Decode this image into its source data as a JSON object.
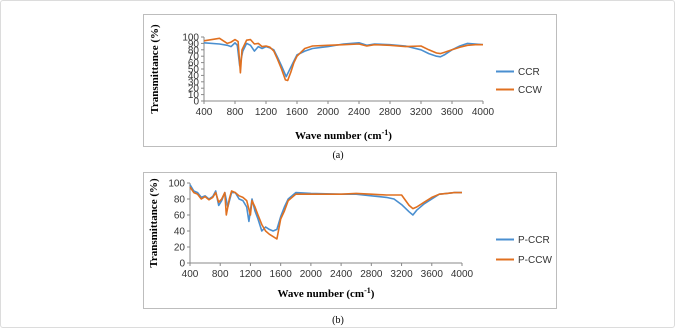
{
  "charts": [
    {
      "id": "a",
      "caption": "(a)",
      "chart_data": {
        "type": "line",
        "xlabel_main": "Wave number (cm",
        "xlabel_sup": "-1",
        "xlabel_end": ")",
        "ylabel": "Transmittance (%)",
        "xlim": [
          400,
          4000
        ],
        "ylim": [
          0,
          100
        ],
        "xticks": [
          400,
          800,
          1200,
          1600,
          2000,
          2400,
          2800,
          3200,
          3600,
          4000
        ],
        "yticks": [
          0,
          10,
          20,
          30,
          40,
          50,
          60,
          70,
          80,
          90,
          100
        ],
        "grid": false,
        "legend_placement": "right",
        "series": [
          {
            "name": "CCR",
            "color": "#4a8fd0",
            "points": [
              [
                400,
                91
              ],
              [
                600,
                89
              ],
              [
                700,
                87
              ],
              [
                750,
                85
              ],
              [
                800,
                91
              ],
              [
                830,
                87
              ],
              [
                860,
                55
              ],
              [
                900,
                78
              ],
              [
                950,
                90
              ],
              [
                1000,
                87
              ],
              [
                1050,
                78
              ],
              [
                1100,
                85
              ],
              [
                1150,
                82
              ],
              [
                1200,
                85
              ],
              [
                1250,
                83
              ],
              [
                1300,
                80
              ],
              [
                1350,
                68
              ],
              [
                1400,
                55
              ],
              [
                1460,
                38
              ],
              [
                1500,
                48
              ],
              [
                1550,
                60
              ],
              [
                1600,
                72
              ],
              [
                1700,
                78
              ],
              [
                1800,
                82
              ],
              [
                2000,
                85
              ],
              [
                2200,
                89
              ],
              [
                2400,
                91
              ],
              [
                2500,
                87
              ],
              [
                2600,
                89
              ],
              [
                2800,
                88
              ],
              [
                3000,
                86
              ],
              [
                3200,
                80
              ],
              [
                3300,
                74
              ],
              [
                3400,
                70
              ],
              [
                3450,
                69
              ],
              [
                3500,
                72
              ],
              [
                3600,
                80
              ],
              [
                3700,
                86
              ],
              [
                3800,
                90
              ],
              [
                3900,
                89
              ],
              [
                4000,
                88
              ]
            ]
          },
          {
            "name": "CCW",
            "color": "#e07020",
            "points": [
              [
                400,
                94
              ],
              [
                500,
                96
              ],
              [
                600,
                98
              ],
              [
                700,
                90
              ],
              [
                750,
                92
              ],
              [
                800,
                96
              ],
              [
                840,
                93
              ],
              [
                870,
                44
              ],
              [
                890,
                80
              ],
              [
                950,
                95
              ],
              [
                1000,
                96
              ],
              [
                1050,
                89
              ],
              [
                1100,
                90
              ],
              [
                1150,
                85
              ],
              [
                1200,
                86
              ],
              [
                1250,
                84
              ],
              [
                1300,
                78
              ],
              [
                1350,
                65
              ],
              [
                1400,
                50
              ],
              [
                1450,
                33
              ],
              [
                1480,
                32
              ],
              [
                1520,
                45
              ],
              [
                1560,
                60
              ],
              [
                1600,
                70
              ],
              [
                1700,
                82
              ],
              [
                1800,
                86
              ],
              [
                2000,
                87
              ],
              [
                2200,
                88
              ],
              [
                2400,
                89
              ],
              [
                2500,
                86
              ],
              [
                2600,
                88
              ],
              [
                2800,
                87
              ],
              [
                3000,
                85
              ],
              [
                3200,
                86
              ],
              [
                3300,
                80
              ],
              [
                3400,
                75
              ],
              [
                3450,
                74
              ],
              [
                3500,
                76
              ],
              [
                3600,
                80
              ],
              [
                3700,
                84
              ],
              [
                3800,
                87
              ],
              [
                3900,
                88
              ],
              [
                4000,
                88
              ]
            ]
          }
        ]
      }
    },
    {
      "id": "b",
      "caption": "(b)",
      "chart_data": {
        "type": "line",
        "xlabel_main": "Wave number (cm",
        "xlabel_sup": "-1",
        "xlabel_end": ")",
        "ylabel": "Transmittance (%)",
        "xlim": [
          400,
          4000
        ],
        "ylim": [
          0,
          100
        ],
        "xticks": [
          400,
          800,
          1200,
          1600,
          2000,
          2400,
          2800,
          3200,
          3600,
          4000
        ],
        "yticks": [
          0,
          20,
          40,
          60,
          80,
          100
        ],
        "grid": false,
        "legend_placement": "right",
        "series": [
          {
            "name": "P-CCR",
            "color": "#4a8fd0",
            "points": [
              [
                400,
                98
              ],
              [
                450,
                90
              ],
              [
                500,
                88
              ],
              [
                550,
                82
              ],
              [
                600,
                84
              ],
              [
                650,
                80
              ],
              [
                700,
                83
              ],
              [
                740,
                90
              ],
              [
                780,
                72
              ],
              [
                820,
                78
              ],
              [
                860,
                88
              ],
              [
                900,
                70
              ],
              [
                950,
                88
              ],
              [
                1000,
                88
              ],
              [
                1050,
                80
              ],
              [
                1100,
                78
              ],
              [
                1150,
                70
              ],
              [
                1180,
                52
              ],
              [
                1220,
                80
              ],
              [
                1260,
                65
              ],
              [
                1300,
                55
              ],
              [
                1350,
                40
              ],
              [
                1400,
                45
              ],
              [
                1450,
                42
              ],
              [
                1500,
                40
              ],
              [
                1550,
                42
              ],
              [
                1600,
                58
              ],
              [
                1650,
                70
              ],
              [
                1700,
                80
              ],
              [
                1800,
                88
              ],
              [
                2000,
                87
              ],
              [
                2400,
                86
              ],
              [
                2600,
                86
              ],
              [
                2800,
                84
              ],
              [
                3000,
                82
              ],
              [
                3100,
                80
              ],
              [
                3200,
                73
              ],
              [
                3300,
                64
              ],
              [
                3350,
                60
              ],
              [
                3400,
                66
              ],
              [
                3500,
                74
              ],
              [
                3600,
                80
              ],
              [
                3700,
                86
              ],
              [
                3800,
                87
              ],
              [
                3900,
                88
              ],
              [
                4000,
                88
              ]
            ]
          },
          {
            "name": "P-CCW",
            "color": "#e07020",
            "points": [
              [
                400,
                95
              ],
              [
                450,
                88
              ],
              [
                500,
                86
              ],
              [
                550,
                80
              ],
              [
                600,
                83
              ],
              [
                650,
                79
              ],
              [
                700,
                82
              ],
              [
                740,
                88
              ],
              [
                780,
                76
              ],
              [
                820,
                80
              ],
              [
                860,
                88
              ],
              [
                880,
                60
              ],
              [
                920,
                80
              ],
              [
                950,
                90
              ],
              [
                1000,
                88
              ],
              [
                1050,
                84
              ],
              [
                1100,
                82
              ],
              [
                1150,
                78
              ],
              [
                1200,
                60
              ],
              [
                1220,
                78
              ],
              [
                1260,
                70
              ],
              [
                1300,
                60
              ],
              [
                1350,
                48
              ],
              [
                1400,
                40
              ],
              [
                1450,
                36
              ],
              [
                1500,
                33
              ],
              [
                1550,
                30
              ],
              [
                1600,
                55
              ],
              [
                1650,
                65
              ],
              [
                1700,
                78
              ],
              [
                1800,
                86
              ],
              [
                2000,
                86
              ],
              [
                2400,
                86
              ],
              [
                2600,
                87
              ],
              [
                2800,
                86
              ],
              [
                3000,
                85
              ],
              [
                3200,
                85
              ],
              [
                3300,
                72
              ],
              [
                3350,
                68
              ],
              [
                3400,
                70
              ],
              [
                3500,
                76
              ],
              [
                3600,
                82
              ],
              [
                3700,
                86
              ],
              [
                3800,
                87
              ],
              [
                3900,
                88
              ],
              [
                4000,
                88
              ]
            ]
          }
        ]
      }
    }
  ]
}
